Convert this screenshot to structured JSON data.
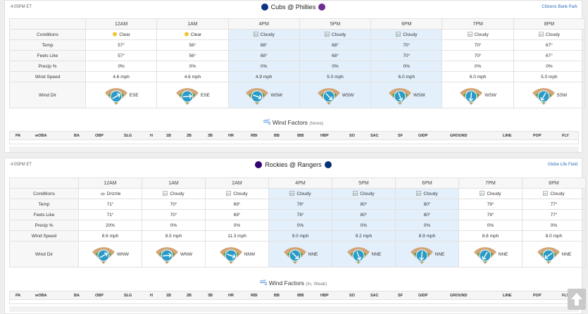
{
  "games": [
    {
      "time": "4:05PM ET",
      "matchup": "Cubs @ Phillies",
      "venue": "Citizens Bank Park",
      "hours": [
        "12AM",
        "1AM",
        "4PM",
        "5PM",
        "6PM",
        "7PM",
        "8PM"
      ],
      "rows": [
        {
          "label": "Conditions",
          "cells": [
            "Clear",
            "Clear",
            "Cloudy",
            "Cloudy",
            "Cloudy",
            "Cloudy",
            "Cloudy"
          ]
        },
        {
          "label": "Temp",
          "cells": [
            "57°",
            "56°",
            "68°",
            "68°",
            "70°",
            "70°",
            "67°"
          ]
        },
        {
          "label": "Feels Like",
          "cells": [
            "57°",
            "56°",
            "68°",
            "68°",
            "70°",
            "70°",
            "67°"
          ]
        },
        {
          "label": "Precip %",
          "cells": [
            "0%",
            "0%",
            "0%",
            "0%",
            "0%",
            "0%",
            "0%"
          ]
        },
        {
          "label": "Wind Speed",
          "cells": [
            "4.6 mph",
            "4.6 mph",
            "4.9 mph",
            "5.0 mph",
            "6.0 mph",
            "6.0 mph",
            "5.0 mph"
          ]
        },
        {
          "label": "Wind Dir",
          "cells": [
            "ESE",
            "ESE",
            "WSW",
            "WSW",
            "WSW",
            "WSW",
            "SSW"
          ]
        }
      ],
      "wind_factors_title": "Wind Factors",
      "wind_factors_note": "(None)"
    },
    {
      "time": "4:05PM ET",
      "matchup": "Rockies @ Rangers",
      "venue": "Globe Life Field",
      "hours": [
        "12AM",
        "1AM",
        "2AM",
        "4PM",
        "5PM",
        "6PM",
        "7PM",
        "8PM"
      ],
      "rows": [
        {
          "label": "Conditions",
          "cells": [
            "Drizzle",
            "Cloudy",
            "Cloudy",
            "Cloudy",
            "Cloudy",
            "Cloudy",
            "Cloudy",
            "Cloudy"
          ]
        },
        {
          "label": "Temp",
          "cells": [
            "71°",
            "70°",
            "69°",
            "79°",
            "80°",
            "80°",
            "79°",
            "77°"
          ]
        },
        {
          "label": "Feels Like",
          "cells": [
            "71°",
            "70°",
            "69°",
            "79°",
            "80°",
            "80°",
            "79°",
            "77°"
          ]
        },
        {
          "label": "Precip %",
          "cells": [
            "20%",
            "0%",
            "0%",
            "0%",
            "0%",
            "0%",
            "0%",
            "0%"
          ]
        },
        {
          "label": "Wind Speed",
          "cells": [
            "8.6 mph",
            "8.5 mph",
            "11.3 mph",
            "9.0 mph",
            "9.2 mph",
            "8.9 mph",
            "8.8 mph",
            "8.0 mph"
          ]
        },
        {
          "label": "Wind Dir",
          "cells": [
            "WNW",
            "WNW",
            "NNW",
            "NNE",
            "NNE",
            "NNE",
            "NNE",
            "NNE"
          ]
        }
      ],
      "wind_factors_title": "Wind Factors",
      "wind_factors_note": "(In, Weak)"
    }
  ],
  "stat_columns": [
    "PA",
    "wOBA",
    "BA",
    "OBP",
    "SLG",
    "H",
    "1B",
    "2B",
    "3B",
    "HR",
    "RBI",
    "BB",
    "IBB",
    "HBP",
    "SO",
    "SAC",
    "SF",
    "GIDP",
    "GROUND",
    "LINE",
    "POP",
    "FLY"
  ]
}
